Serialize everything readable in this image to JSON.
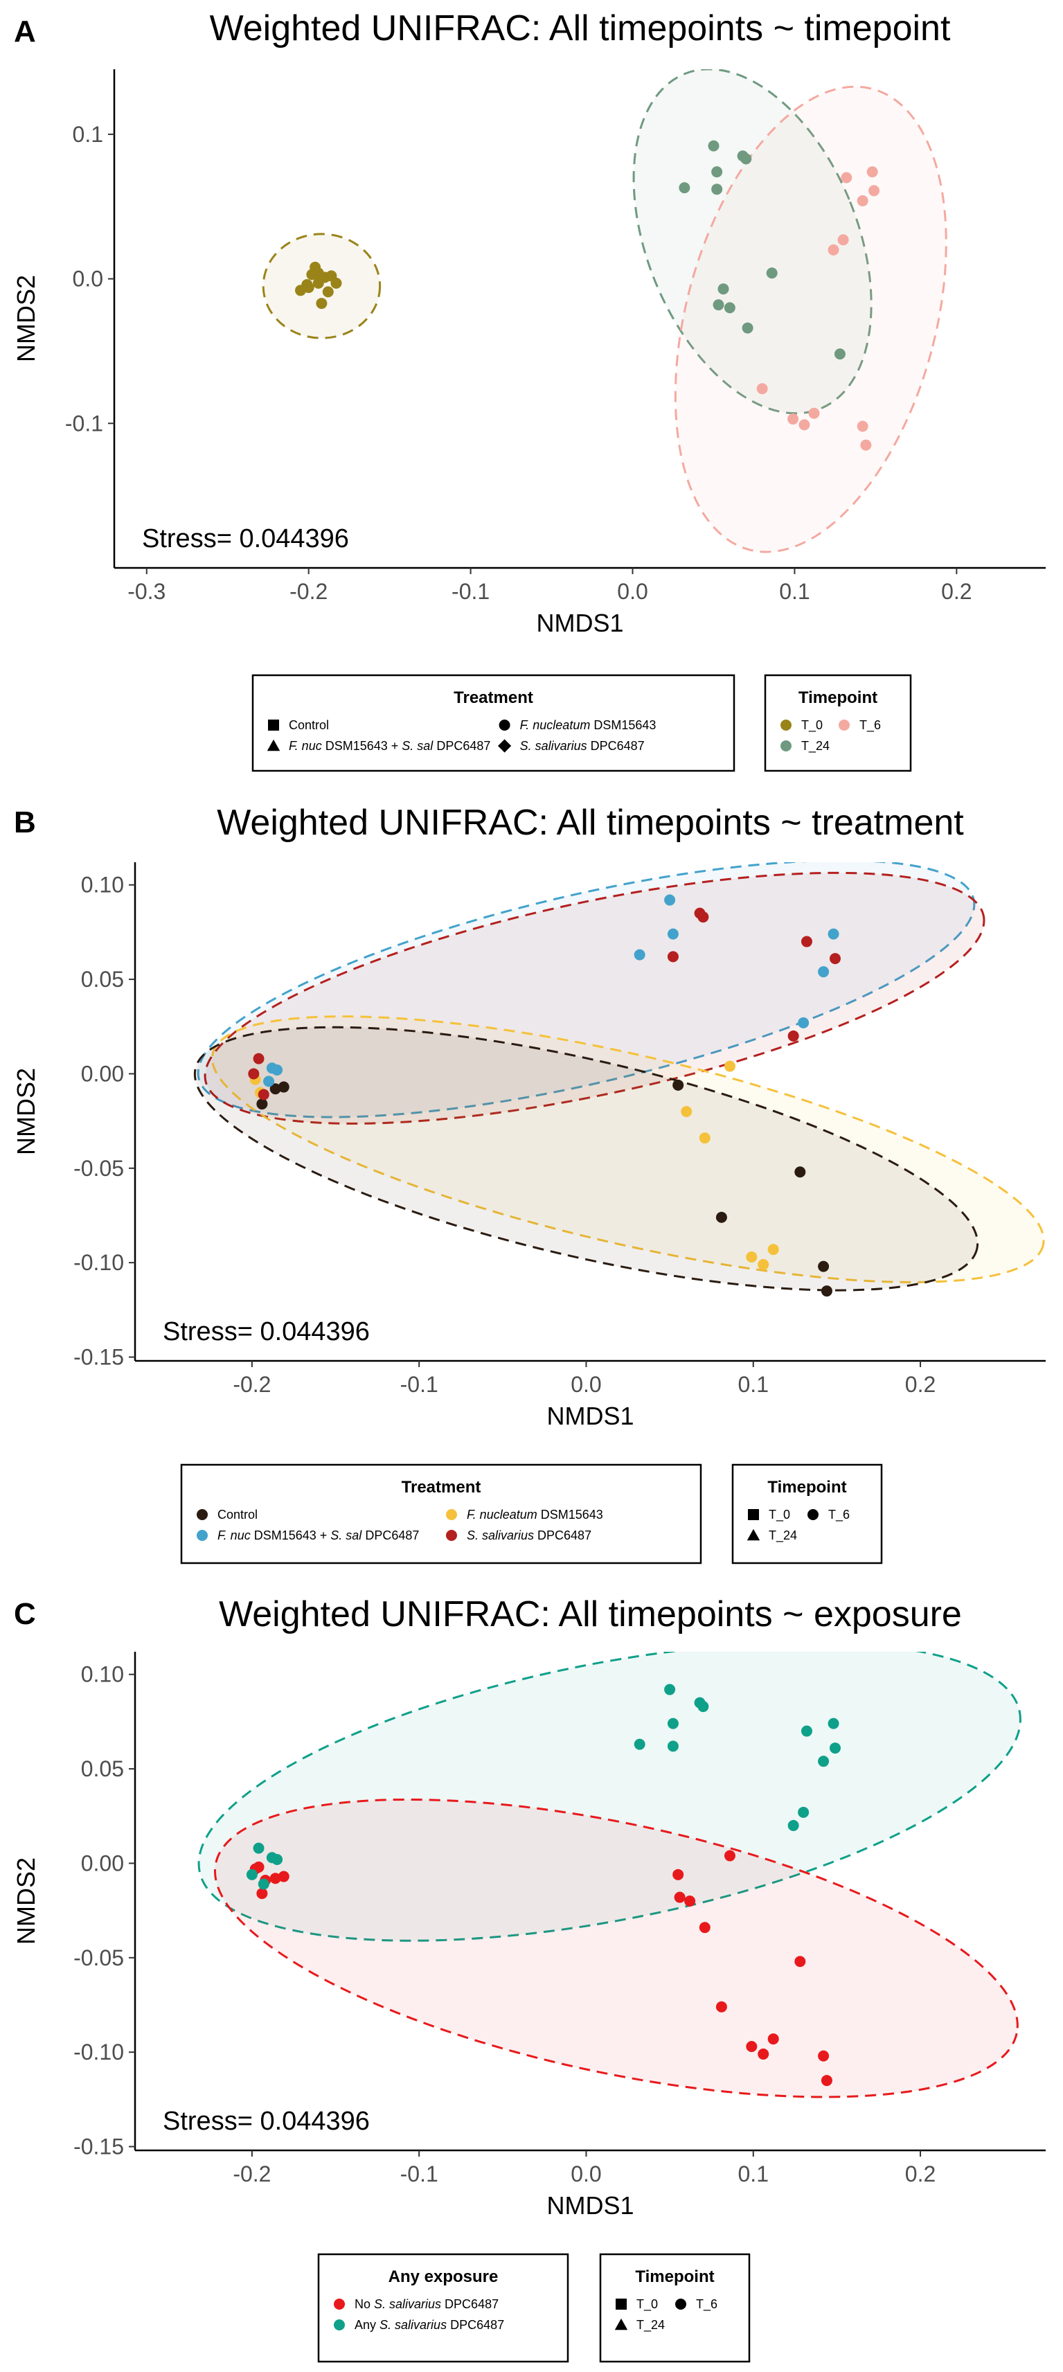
{
  "panels": [
    {
      "letter": "A",
      "title": "Weighted UNIFRAC: All timepoints ~ timepoint",
      "stress": "Stress= 0.044396",
      "legends": [
        {
          "title": "Treatment",
          "cols": 2,
          "items": [
            {
              "marker": "square",
              "color": "#000000",
              "parts": [
                {
                  "t": "Control"
                }
              ]
            },
            {
              "marker": "circle",
              "color": "#000000",
              "parts": [
                {
                  "t": "F. nucleatum",
                  "i": true
                },
                {
                  "t": " DSM15643"
                }
              ]
            },
            {
              "marker": "triangle",
              "color": "#000000",
              "parts": [
                {
                  "t": "F. nuc",
                  "i": true
                },
                {
                  "t": " DSM15643 + "
                },
                {
                  "t": "S. sal",
                  "i": true
                },
                {
                  "t": " DPC6487"
                }
              ]
            },
            {
              "marker": "diamond",
              "color": "#000000",
              "parts": [
                {
                  "t": "S. salivarius",
                  "i": true
                },
                {
                  "t": " DPC6487"
                }
              ]
            }
          ]
        },
        {
          "title": "Timepoint",
          "cols": 2,
          "items": [
            {
              "marker": "circle",
              "color": "#9A8419",
              "parts": [
                {
                  "t": "T_0"
                }
              ]
            },
            {
              "marker": "circle",
              "color": "#F4A9A0",
              "parts": [
                {
                  "t": "T_6"
                }
              ]
            },
            {
              "marker": "circle",
              "color": "#6F9A80",
              "parts": [
                {
                  "t": "T_24"
                }
              ]
            }
          ]
        }
      ]
    },
    {
      "letter": "B",
      "title": "Weighted UNIFRAC: All timepoints ~ treatment",
      "stress": "Stress= 0.044396",
      "legends": [
        {
          "title": "Treatment",
          "cols": 2,
          "items": [
            {
              "marker": "circle",
              "color": "#2B1B10",
              "parts": [
                {
                  "t": "Control"
                }
              ]
            },
            {
              "marker": "circle",
              "color": "#F5C13A",
              "parts": [
                {
                  "t": "F. nucleatum",
                  "i": true
                },
                {
                  "t": " DSM15643"
                }
              ]
            },
            {
              "marker": "circle",
              "color": "#43A2CC",
              "parts": [
                {
                  "t": "F. nuc",
                  "i": true
                },
                {
                  "t": " DSM15643 + "
                },
                {
                  "t": "S. sal",
                  "i": true
                },
                {
                  "t": " DPC6487"
                }
              ]
            },
            {
              "marker": "circle",
              "color": "#B51F1F",
              "parts": [
                {
                  "t": "S. salivarius",
                  "i": true
                },
                {
                  "t": " DPC6487"
                }
              ]
            }
          ]
        },
        {
          "title": "Timepoint",
          "cols": 2,
          "items": [
            {
              "marker": "square",
              "color": "#000000",
              "parts": [
                {
                  "t": "T_0"
                }
              ]
            },
            {
              "marker": "circle",
              "color": "#000000",
              "parts": [
                {
                  "t": "T_6"
                }
              ]
            },
            {
              "marker": "triangle",
              "color": "#000000",
              "parts": [
                {
                  "t": "T_24"
                }
              ]
            }
          ]
        }
      ]
    },
    {
      "letter": "C",
      "title": "Weighted UNIFRAC: All timepoints ~ exposure",
      "stress": "Stress= 0.044396",
      "legends": [
        {
          "title": "Any exposure",
          "cols": 1,
          "items": [
            {
              "marker": "circle",
              "color": "#E8191C",
              "parts": [
                {
                  "t": "No "
                },
                {
                  "t": "S. salivarius",
                  "i": true
                },
                {
                  "t": " DPC6487"
                }
              ]
            },
            {
              "marker": "circle",
              "color": "#0FA08A",
              "parts": [
                {
                  "t": "Any "
                },
                {
                  "t": "S. salivarius",
                  "i": true
                },
                {
                  "t": " DPC6487"
                }
              ]
            }
          ]
        },
        {
          "title": "Timepoint",
          "cols": 2,
          "items": [
            {
              "marker": "square",
              "color": "#000000",
              "parts": [
                {
                  "t": "T_0"
                }
              ]
            },
            {
              "marker": "circle",
              "color": "#000000",
              "parts": [
                {
                  "t": "T_6"
                }
              ]
            },
            {
              "marker": "triangle",
              "color": "#000000",
              "parts": [
                {
                  "t": "T_24"
                }
              ]
            }
          ]
        }
      ]
    }
  ],
  "chart_data": [
    {
      "type": "scatter",
      "title": "Weighted UNIFRAC: All timepoints ~ timepoint",
      "xlabel": "NMDS1",
      "ylabel": "NMDS2",
      "xlim": [
        -0.32,
        0.255
      ],
      "ylim": [
        -0.2,
        0.145
      ],
      "xticks": [
        -0.3,
        -0.2,
        -0.1,
        0.0,
        0.1,
        0.2
      ],
      "yticks": [
        -0.1,
        0.0,
        0.1
      ],
      "xtick_labels": [
        "-0.3",
        "-0.2",
        "-0.1",
        "0.0",
        "0.1",
        "0.2"
      ],
      "ytick_labels": [
        "-0.1",
        "0.0",
        "0.1"
      ],
      "grid": false,
      "series": [
        {
          "name": "T_0",
          "color": "#9A8419",
          "points": [
            [
              -0.198,
              0.003
            ],
            [
              -0.194,
              -0.003
            ],
            [
              -0.19,
              0.001
            ],
            [
              -0.2,
              -0.006
            ],
            [
              -0.186,
              0.002
            ],
            [
              -0.196,
              0.008
            ],
            [
              -0.183,
              -0.003
            ],
            [
              -0.205,
              -0.008
            ],
            [
              -0.192,
              -0.017
            ],
            [
              -0.194,
              0.004
            ],
            [
              -0.188,
              -0.009
            ],
            [
              -0.201,
              -0.004
            ]
          ]
        },
        {
          "name": "T_24",
          "color": "#6F9A80",
          "points": [
            [
              0.05,
              0.092
            ],
            [
              0.068,
              0.085
            ],
            [
              0.07,
              0.083
            ],
            [
              0.032,
              0.063
            ],
            [
              0.052,
              0.074
            ],
            [
              0.052,
              0.062
            ],
            [
              0.086,
              0.004
            ],
            [
              0.056,
              -0.007
            ],
            [
              0.053,
              -0.018
            ],
            [
              0.06,
              -0.02
            ],
            [
              0.071,
              -0.034
            ],
            [
              0.128,
              -0.052
            ]
          ]
        },
        {
          "name": "T_6",
          "color": "#F4A9A0",
          "points": [
            [
              0.132,
              0.07
            ],
            [
              0.148,
              0.074
            ],
            [
              0.149,
              0.061
            ],
            [
              0.142,
              0.054
            ],
            [
              0.13,
              0.027
            ],
            [
              0.124,
              0.02
            ],
            [
              0.08,
              -0.076
            ],
            [
              0.099,
              -0.097
            ],
            [
              0.106,
              -0.101
            ],
            [
              0.112,
              -0.093
            ],
            [
              0.142,
              -0.102
            ],
            [
              0.144,
              -0.115
            ]
          ]
        }
      ]
    },
    {
      "type": "scatter",
      "title": "Weighted UNIFRAC: All timepoints ~ treatment",
      "xlabel": "NMDS1",
      "ylabel": "NMDS2",
      "xlim": [
        -0.27,
        0.275
      ],
      "ylim": [
        -0.152,
        0.112
      ],
      "xticks": [
        -0.2,
        -0.1,
        0.0,
        0.1,
        0.2
      ],
      "yticks": [
        -0.15,
        -0.1,
        -0.05,
        0.0,
        0.05,
        0.1
      ],
      "xtick_labels": [
        "-0.2",
        "-0.1",
        "0.0",
        "0.1",
        "0.2"
      ],
      "ytick_labels": [
        "-0.15",
        "-0.10",
        "-0.05",
        "0.00",
        "0.05",
        "0.10"
      ],
      "grid": false,
      "series": [
        {
          "name": "Control",
          "color": "#2B1B10",
          "points": [
            [
              -0.186,
              -0.008
            ],
            [
              -0.181,
              -0.007
            ],
            [
              -0.194,
              -0.016
            ],
            [
              0.055,
              -0.006
            ],
            [
              0.081,
              -0.076
            ],
            [
              0.128,
              -0.052
            ],
            [
              0.142,
              -0.102
            ],
            [
              0.144,
              -0.115
            ]
          ]
        },
        {
          "name": "F. nucleatum DSM15643",
          "color": "#F5C13A",
          "points": [
            [
              -0.198,
              -0.003
            ],
            [
              -0.195,
              -0.01
            ],
            [
              0.06,
              -0.02
            ],
            [
              0.071,
              -0.034
            ],
            [
              0.086,
              0.004
            ],
            [
              0.099,
              -0.097
            ],
            [
              0.106,
              -0.101
            ],
            [
              0.112,
              -0.093
            ]
          ]
        },
        {
          "name": "F. nuc DSM15643 + S. sal DPC6487",
          "color": "#43A2CC",
          "points": [
            [
              -0.188,
              0.003
            ],
            [
              -0.185,
              0.002
            ],
            [
              -0.19,
              -0.004
            ],
            [
              0.05,
              0.092
            ],
            [
              0.052,
              0.074
            ],
            [
              0.032,
              0.063
            ],
            [
              0.148,
              0.074
            ],
            [
              0.142,
              0.054
            ],
            [
              0.13,
              0.027
            ]
          ]
        },
        {
          "name": "S. salivarius DPC6487",
          "color": "#B51F1F",
          "points": [
            [
              -0.196,
              0.008
            ],
            [
              -0.199,
              0.0
            ],
            [
              -0.193,
              -0.011
            ],
            [
              0.068,
              0.085
            ],
            [
              0.07,
              0.083
            ],
            [
              0.052,
              0.062
            ],
            [
              0.132,
              0.07
            ],
            [
              0.149,
              0.061
            ],
            [
              0.124,
              0.02
            ]
          ]
        }
      ]
    },
    {
      "type": "scatter",
      "title": "Weighted UNIFRAC: All timepoints ~ exposure",
      "xlabel": "NMDS1",
      "ylabel": "NMDS2",
      "xlim": [
        -0.27,
        0.275
      ],
      "ylim": [
        -0.152,
        0.112
      ],
      "xticks": [
        -0.2,
        -0.1,
        0.0,
        0.1,
        0.2
      ],
      "yticks": [
        -0.15,
        -0.1,
        -0.05,
        0.0,
        0.05,
        0.1
      ],
      "xtick_labels": [
        "-0.2",
        "-0.1",
        "0.0",
        "0.1",
        "0.2"
      ],
      "ytick_labels": [
        "-0.15",
        "-0.10",
        "-0.05",
        "0.00",
        "0.05",
        "0.10"
      ],
      "grid": false,
      "series": [
        {
          "name": "No S. salivarius DPC6487",
          "color": "#E8191C",
          "points": [
            [
              -0.196,
              -0.002
            ],
            [
              -0.192,
              -0.009
            ],
            [
              -0.198,
              -0.003
            ],
            [
              -0.186,
              -0.008
            ],
            [
              -0.181,
              -0.007
            ],
            [
              -0.194,
              -0.016
            ],
            [
              0.055,
              -0.006
            ],
            [
              0.056,
              -0.018
            ],
            [
              0.062,
              -0.02
            ],
            [
              0.071,
              -0.034
            ],
            [
              0.086,
              0.004
            ],
            [
              0.081,
              -0.076
            ],
            [
              0.128,
              -0.052
            ],
            [
              0.099,
              -0.097
            ],
            [
              0.106,
              -0.101
            ],
            [
              0.112,
              -0.093
            ],
            [
              0.142,
              -0.102
            ],
            [
              0.144,
              -0.115
            ]
          ]
        },
        {
          "name": "Any S. salivarius DPC6487",
          "color": "#0FA08A",
          "points": [
            [
              -0.196,
              0.008
            ],
            [
              -0.188,
              0.003
            ],
            [
              -0.185,
              0.002
            ],
            [
              -0.2,
              -0.006
            ],
            [
              -0.193,
              -0.011
            ],
            [
              0.05,
              0.092
            ],
            [
              0.052,
              0.074
            ],
            [
              0.052,
              0.062
            ],
            [
              0.032,
              0.063
            ],
            [
              0.068,
              0.085
            ],
            [
              0.07,
              0.083
            ],
            [
              0.132,
              0.07
            ],
            [
              0.148,
              0.074
            ],
            [
              0.149,
              0.061
            ],
            [
              0.142,
              0.054
            ],
            [
              0.13,
              0.027
            ],
            [
              0.124,
              0.02
            ]
          ]
        }
      ]
    }
  ]
}
